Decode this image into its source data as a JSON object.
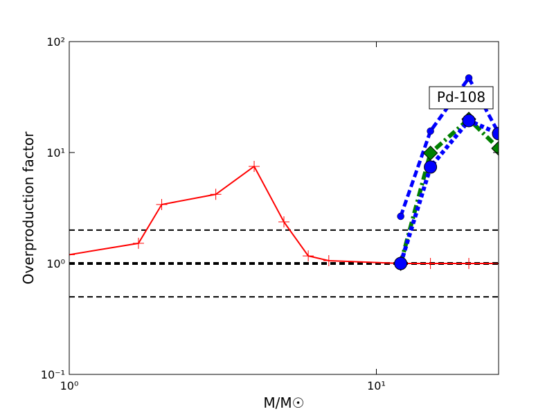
{
  "chart_data": {
    "type": "line",
    "xlabel": "M/M☉",
    "ylabel": "Overproduction factor",
    "annotation": "Pd-108",
    "xscale": "log",
    "yscale": "log",
    "xlim": [
      1,
      25
    ],
    "ylim": [
      0.1,
      100
    ],
    "xticks": [
      {
        "value": 1,
        "label": "10⁰"
      },
      {
        "value": 10,
        "label": "10¹"
      }
    ],
    "yticks": [
      {
        "value": 0.1,
        "label": "10⁻¹"
      },
      {
        "value": 1,
        "label": "10⁰"
      },
      {
        "value": 10,
        "label": "10¹"
      },
      {
        "value": 100,
        "label": "10²"
      }
    ],
    "reference_lines": [
      2,
      1,
      0.5
    ],
    "series": [
      {
        "color": "#ff0000",
        "style": "solid",
        "marker": "plus",
        "x": [
          1,
          1.68,
          2,
          3,
          4,
          5,
          6,
          7,
          12,
          15,
          20,
          25
        ],
        "values": [
          1.2,
          1.52,
          3.4,
          4.2,
          7.5,
          2.37,
          1.17,
          1.06,
          1.0,
          1.0,
          1.0,
          1.0
        ]
      },
      {
        "color": "#0000ff",
        "style": "dashed",
        "marker": "small-circle",
        "x": [
          12,
          15,
          20,
          25
        ],
        "values": [
          2.66,
          15.6,
          47,
          15
        ]
      },
      {
        "color": "#008000",
        "style": "dashdot",
        "marker": "diamond",
        "x": [
          12,
          15,
          20,
          25
        ],
        "values": [
          1.0,
          9.9,
          20,
          10.9
        ]
      },
      {
        "color": "#0000ff",
        "style": "dotted",
        "marker": "circle",
        "x": [
          12,
          15,
          20,
          25
        ],
        "values": [
          1.0,
          7.4,
          19.4,
          14.8
        ]
      }
    ]
  }
}
